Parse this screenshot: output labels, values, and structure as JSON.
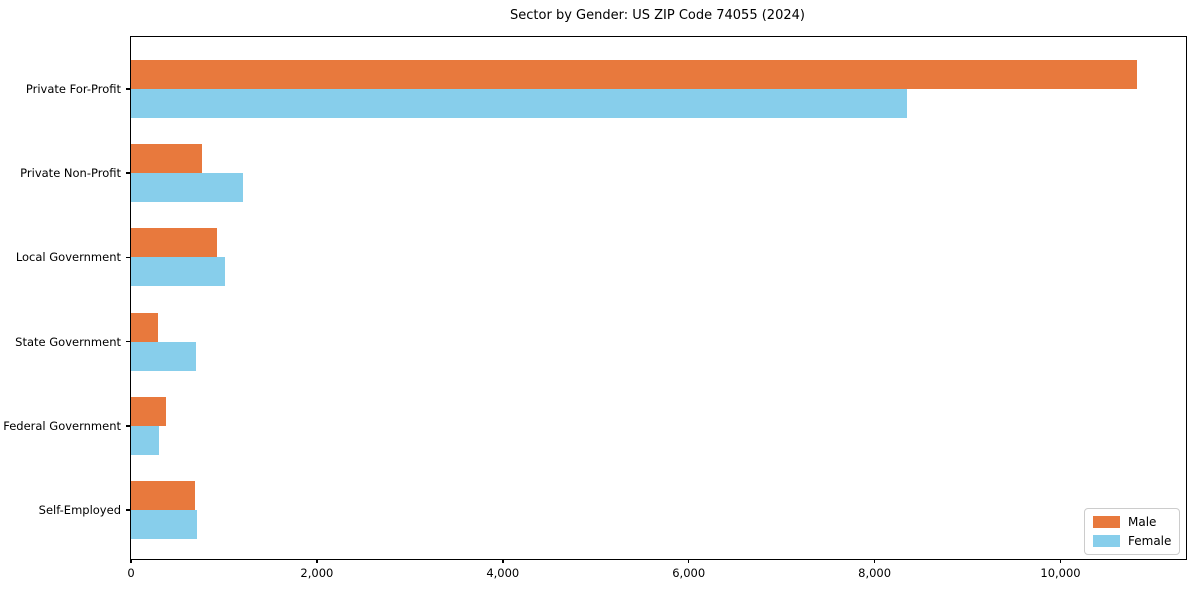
{
  "title": "Sector by Gender: US ZIP Code 74055 (2024)",
  "colors": {
    "male": "#e8793d",
    "female": "#87ceeb",
    "spine": "#000000",
    "legend_border": "#cccccc"
  },
  "legend": {
    "position": "lower right",
    "items": [
      {
        "label": "Male",
        "color": "#e8793d"
      },
      {
        "label": "Female",
        "color": "#87ceeb"
      }
    ]
  },
  "chart_data": {
    "type": "bar",
    "orientation": "horizontal",
    "title": "Sector by Gender: US ZIP Code 74055 (2024)",
    "categories": [
      "Private For-Profit",
      "Private Non-Profit",
      "Local Government",
      "State Government",
      "Federal Government",
      "Self-Employed"
    ],
    "series": [
      {
        "name": "Male",
        "color": "#e8793d",
        "values": [
          10820,
          760,
          930,
          295,
          375,
          690
        ]
      },
      {
        "name": "Female",
        "color": "#87ceeb",
        "values": [
          8350,
          1200,
          1010,
          695,
          305,
          715
        ]
      }
    ],
    "x_ticks": [
      0,
      2000,
      4000,
      6000,
      8000,
      10000
    ],
    "x_tick_labels": [
      "0",
      "2,000",
      "4,000",
      "6,000",
      "8,000",
      "10,000"
    ],
    "xlim": [
      0,
      11350
    ],
    "xlabel": "",
    "ylabel": "",
    "grid": false,
    "legend_position": "lower right"
  }
}
